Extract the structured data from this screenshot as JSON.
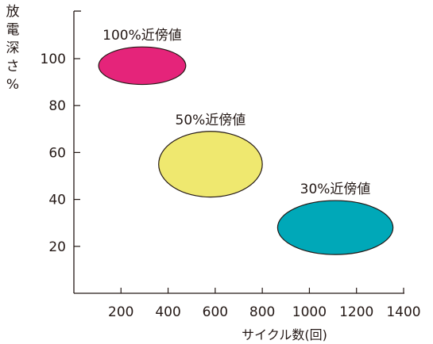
{
  "chart_data": {
    "type": "scatter",
    "title": "",
    "xlabel": "サイクル数(回)",
    "ylabel": "放電深さ%",
    "xlim": [
      0,
      1400
    ],
    "ylim": [
      0,
      120
    ],
    "x_ticks": [
      200,
      400,
      600,
      800,
      1000,
      1200,
      1400
    ],
    "y_ticks": [
      20,
      40,
      60,
      80,
      100
    ],
    "grid": false,
    "legend": "none",
    "regions": [
      {
        "label": "100%近傍値",
        "x_center": 290,
        "y_center": 97,
        "x_half_width": 185,
        "y_half_height": 8,
        "color": "#e5247a"
      },
      {
        "label": "50%近傍値",
        "x_center": 580,
        "y_center": 55,
        "x_half_width": 220,
        "y_half_height": 14,
        "color": "#efe86f"
      },
      {
        "label": "30%近傍値",
        "x_center": 1110,
        "y_center": 28,
        "x_half_width": 245,
        "y_half_height": 11.5,
        "color": "#00a8b8"
      }
    ]
  }
}
